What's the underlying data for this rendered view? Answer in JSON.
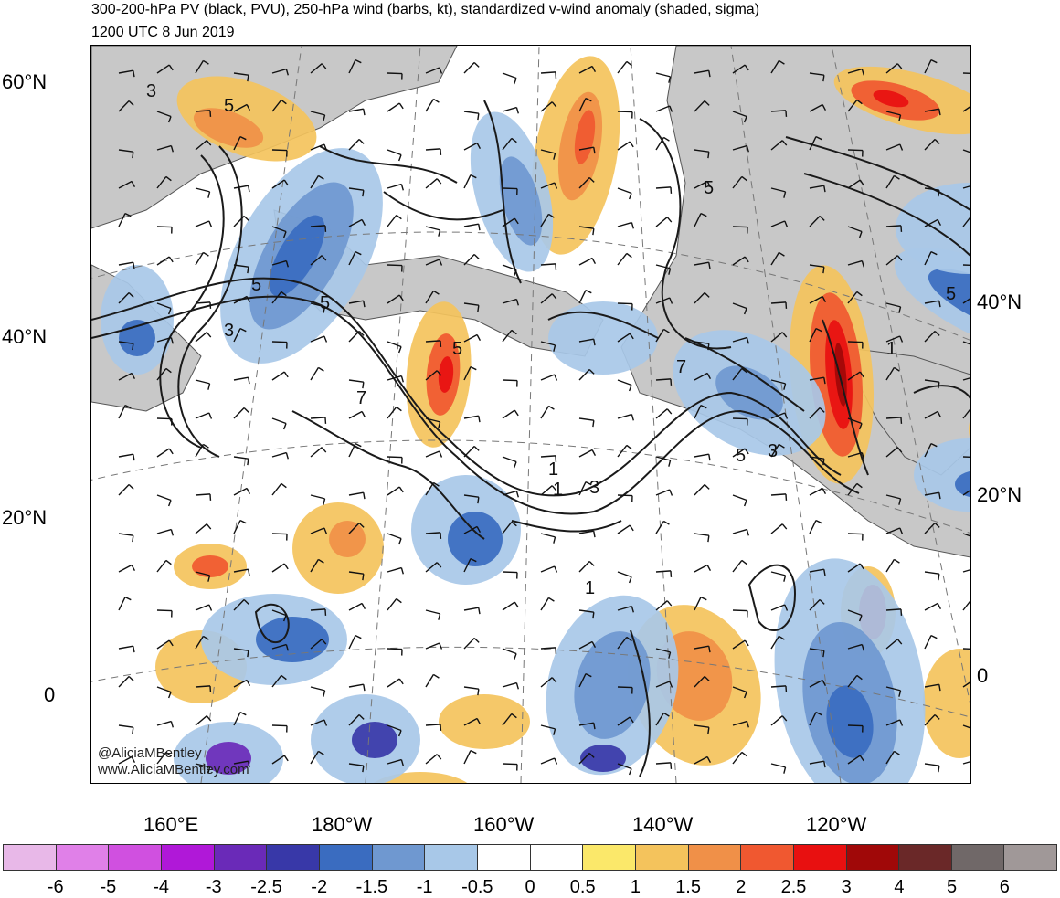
{
  "title_line1": "300-200-hPa PV (black, PVU), 250-hPa wind (barbs, kt), standardized v-wind anomaly (shaded, sigma)",
  "title_line2": "1200 UTC 8 Jun 2019",
  "lat_labels_left": [
    "60°N",
    "40°N",
    "20°N",
    "0"
  ],
  "lat_labels_right": [
    "40°N",
    "20°N",
    "0"
  ],
  "lon_labels": [
    "160°E",
    "180°W",
    "160°W",
    "140°W",
    "120°W"
  ],
  "contour_labels": [
    "3",
    "5",
    "5",
    "3",
    "5",
    "5",
    "7",
    "3",
    "1",
    "5",
    "5",
    "3",
    "1",
    "1",
    "5",
    "1",
    "7"
  ],
  "watermark_line1": "@AliciaMBentley",
  "watermark_line2": "www.AliciaMBentley.com",
  "colorbar": {
    "labels": [
      "-6",
      "-5",
      "-4",
      "-3",
      "-2.5",
      "-2",
      "-1.5",
      "-1",
      "-0.5",
      "0",
      "0.5",
      "1",
      "1.5",
      "2",
      "2.5",
      "3",
      "4",
      "5",
      "6"
    ],
    "colors": [
      "#e8b8e8",
      "#e080e8",
      "#d050e0",
      "#b018d8",
      "#6a2ab8",
      "#3838a8",
      "#3a6cc0",
      "#6f98d0",
      "#a8c8e8",
      "#ffffff",
      "#ffffff",
      "#fbe86a",
      "#f4c35c",
      "#f09048",
      "#f05830",
      "#e81010",
      "#a00808",
      "#6a2828",
      "#706868",
      "#a09898"
    ]
  },
  "colors": {
    "land": "#c8c8c8",
    "coast": "#555555",
    "contour": "#1a1a1a"
  }
}
